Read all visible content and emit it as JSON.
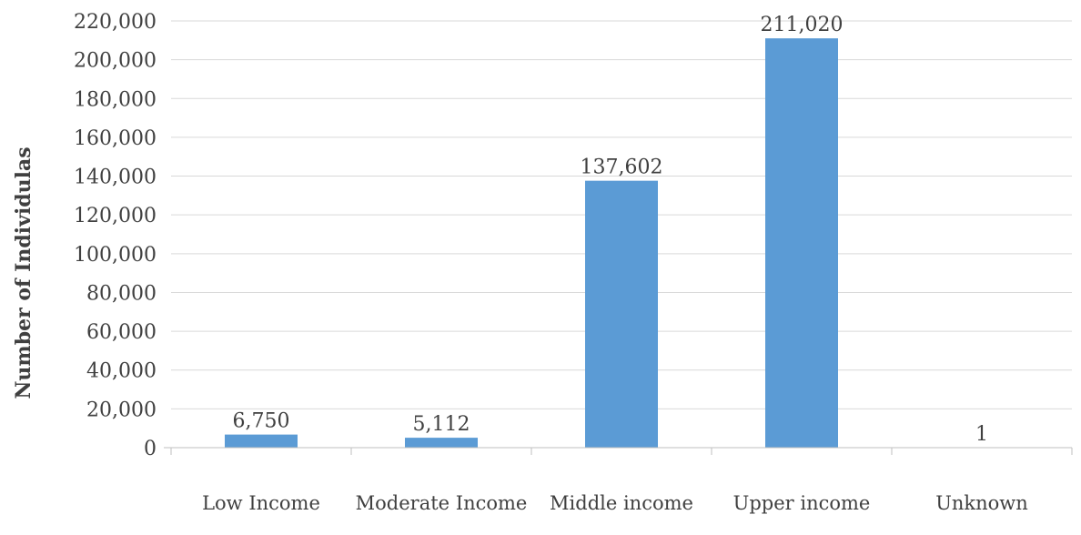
{
  "chart_data": {
    "type": "bar",
    "categories": [
      "Low Income",
      "Moderate Income",
      "Middle income",
      "Upper income",
      "Unknown"
    ],
    "values": [
      6750,
      5112,
      137602,
      211020,
      1
    ],
    "value_labels": [
      "6,750",
      "5,112",
      "137,602",
      "211,020",
      "1"
    ],
    "ylabel": "Number of Individulas",
    "ylim": [
      0,
      220000
    ],
    "yticks": [
      0,
      20000,
      40000,
      60000,
      80000,
      100000,
      120000,
      140000,
      160000,
      180000,
      200000,
      220000
    ],
    "ytick_labels": [
      "0",
      "20,000",
      "40,000",
      "60,000",
      "80,000",
      "100,000",
      "120,000",
      "140,000",
      "160,000",
      "180,000",
      "200,000",
      "220,000"
    ],
    "grid": true,
    "bar_color": "#5b9bd5",
    "gridline_color": "#d9d9d9",
    "axis_color": "#bfbfbf"
  }
}
